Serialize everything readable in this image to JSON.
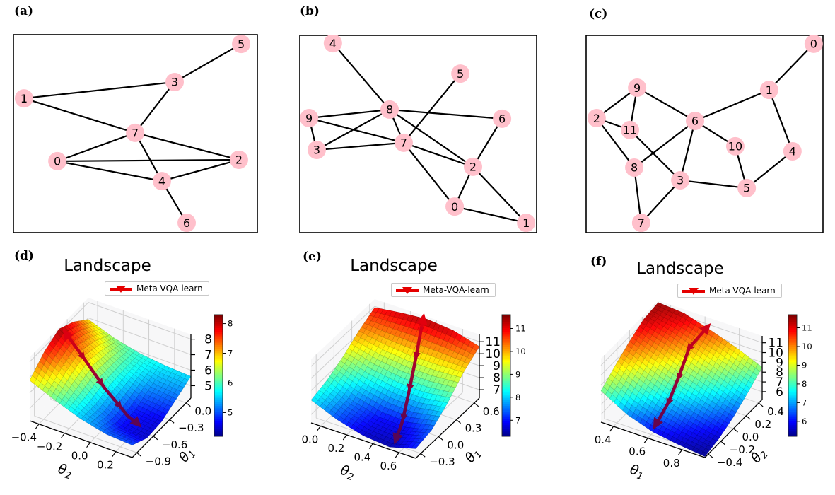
{
  "figure": {
    "panel_labels": {
      "a": "(a)",
      "b": "(b)",
      "c": "(c)",
      "d": "(d)",
      "e": "(e)",
      "f": "(f)"
    }
  },
  "styles": {
    "node_fill": "#FFC0CB",
    "edge_color": "#000000",
    "legend_color": "#e50000",
    "trajectory_high_color": "#e8000b",
    "trajectory_low_color": "#46065e",
    "pane_color": "#f2f2f4",
    "grid_color": "#cfcfcf"
  },
  "chart_data": [
    {
      "id": "a",
      "type": "network",
      "panel": "(a)",
      "nodes": [
        {
          "label": "0",
          "x": 0.182,
          "y": 0.638
        },
        {
          "label": "1",
          "x": 0.046,
          "y": 0.323
        },
        {
          "label": "2",
          "x": 0.922,
          "y": 0.631
        },
        {
          "label": "3",
          "x": 0.66,
          "y": 0.241
        },
        {
          "label": "4",
          "x": 0.608,
          "y": 0.738
        },
        {
          "label": "5",
          "x": 0.931,
          "y": 0.05
        },
        {
          "label": "6",
          "x": 0.709,
          "y": 0.947
        },
        {
          "label": "7",
          "x": 0.499,
          "y": 0.496
        }
      ],
      "edges": [
        [
          "0",
          "2"
        ],
        [
          "0",
          "4"
        ],
        [
          "0",
          "7"
        ],
        [
          "1",
          "3"
        ],
        [
          "1",
          "7"
        ],
        [
          "2",
          "4"
        ],
        [
          "2",
          "7"
        ],
        [
          "3",
          "5"
        ],
        [
          "3",
          "7"
        ],
        [
          "4",
          "6"
        ],
        [
          "4",
          "7"
        ]
      ]
    },
    {
      "id": "b",
      "type": "network",
      "panel": "(b)",
      "nodes": [
        {
          "label": "0",
          "x": 0.653,
          "y": 0.865
        },
        {
          "label": "1",
          "x": 0.953,
          "y": 0.947
        },
        {
          "label": "2",
          "x": 0.73,
          "y": 0.665
        },
        {
          "label": "3",
          "x": 0.074,
          "y": 0.58
        },
        {
          "label": "4",
          "x": 0.142,
          "y": 0.043
        },
        {
          "label": "5",
          "x": 0.677,
          "y": 0.196
        },
        {
          "label": "6",
          "x": 0.852,
          "y": 0.423
        },
        {
          "label": "7",
          "x": 0.439,
          "y": 0.544
        },
        {
          "label": "8",
          "x": 0.38,
          "y": 0.377
        },
        {
          "label": "9",
          "x": 0.042,
          "y": 0.42
        }
      ],
      "edges": [
        [
          "0",
          "1"
        ],
        [
          "0",
          "2"
        ],
        [
          "0",
          "7"
        ],
        [
          "1",
          "2"
        ],
        [
          "2",
          "6"
        ],
        [
          "2",
          "7"
        ],
        [
          "2",
          "8"
        ],
        [
          "3",
          "7"
        ],
        [
          "3",
          "8"
        ],
        [
          "3",
          "9"
        ],
        [
          "4",
          "8"
        ],
        [
          "5",
          "7"
        ],
        [
          "6",
          "8"
        ],
        [
          "7",
          "8"
        ],
        [
          "7",
          "9"
        ],
        [
          "8",
          "9"
        ]
      ]
    },
    {
      "id": "c",
      "type": "network",
      "panel": "(c)",
      "nodes": [
        {
          "label": "0",
          "x": 0.958,
          "y": 0.046
        },
        {
          "label": "1",
          "x": 0.771,
          "y": 0.278
        },
        {
          "label": "2",
          "x": 0.047,
          "y": 0.42
        },
        {
          "label": "3",
          "x": 0.398,
          "y": 0.733
        },
        {
          "label": "4",
          "x": 0.869,
          "y": 0.587
        },
        {
          "label": "5",
          "x": 0.677,
          "y": 0.772
        },
        {
          "label": "6",
          "x": 0.46,
          "y": 0.434
        },
        {
          "label": "7",
          "x": 0.234,
          "y": 0.947
        },
        {
          "label": "8",
          "x": 0.205,
          "y": 0.669
        },
        {
          "label": "9",
          "x": 0.217,
          "y": 0.267
        },
        {
          "label": "10",
          "x": 0.629,
          "y": 0.562
        },
        {
          "label": "11",
          "x": 0.187,
          "y": 0.48
        }
      ],
      "edges": [
        [
          "0",
          "1"
        ],
        [
          "1",
          "4"
        ],
        [
          "1",
          "6"
        ],
        [
          "2",
          "8"
        ],
        [
          "2",
          "9"
        ],
        [
          "2",
          "11"
        ],
        [
          "3",
          "5"
        ],
        [
          "3",
          "6"
        ],
        [
          "3",
          "7"
        ],
        [
          "3",
          "11"
        ],
        [
          "4",
          "5"
        ],
        [
          "5",
          "10"
        ],
        [
          "6",
          "8"
        ],
        [
          "6",
          "9"
        ],
        [
          "6",
          "10"
        ],
        [
          "7",
          "8"
        ],
        [
          "9",
          "11"
        ]
      ]
    },
    {
      "id": "d",
      "type": "surface3d",
      "panel": "(d)",
      "title": "Landscape",
      "legend": "Meta-VQA-learn",
      "bottom_left_axis": {
        "label": "θ2",
        "ticks": [
          "−0.4",
          "−0.2",
          "0.0",
          "0.2"
        ]
      },
      "bottom_right_axis": {
        "label": "θ1",
        "ticks": [
          "−0.9",
          "−0.6",
          "−0.3",
          "0.0"
        ]
      },
      "z_ticks": [
        5,
        6,
        7,
        8
      ],
      "colorbar": {
        "ticks": [
          5,
          6,
          7,
          8
        ],
        "vmin": 4.2,
        "vmax": 8.3,
        "colormap": "jet"
      },
      "z_grid": [
        [
          6.8,
          7.7,
          8.2,
          7.7,
          6.9
        ],
        [
          6.1,
          6.7,
          7.1,
          6.8,
          6.3
        ],
        [
          5.5,
          5.5,
          5.8,
          5.9,
          5.9
        ],
        [
          5.1,
          4.7,
          4.8,
          5.3,
          5.7
        ],
        [
          5.0,
          4.5,
          4.6,
          5.1,
          5.6
        ]
      ],
      "trajectory": {
        "label": "Meta-VQA-learn",
        "points_grid": [
          [
            0.3,
            2.0
          ],
          [
            1.0,
            1.85
          ],
          [
            1.8,
            1.7
          ],
          [
            2.6,
            1.55
          ],
          [
            3.4,
            1.35
          ]
        ]
      }
    },
    {
      "id": "e",
      "type": "surface3d",
      "panel": "(e)",
      "title": "Landscape",
      "legend": "Meta-VQA-learn",
      "bottom_left_axis": {
        "label": "θ2",
        "ticks": [
          "0.0",
          "0.2",
          "0.4",
          "0.6"
        ]
      },
      "bottom_right_axis": {
        "label": "θ1",
        "ticks": [
          "−0.3",
          "0.0",
          "0.3",
          "0.6"
        ]
      },
      "z_ticks": [
        7,
        8,
        9,
        10,
        11
      ],
      "colorbar": {
        "ticks": [
          7,
          8,
          9,
          10,
          11
        ],
        "vmin": 6.3,
        "vmax": 11.6,
        "colormap": "jet"
      },
      "z_grid": [
        [
          8.2,
          8.6,
          9.3,
          10.2,
          10.9
        ],
        [
          7.3,
          7.6,
          8.6,
          9.8,
          11.2
        ],
        [
          6.7,
          7.0,
          8.2,
          9.6,
          11.4
        ],
        [
          6.5,
          6.9,
          8.1,
          9.6,
          11.2
        ],
        [
          7.1,
          7.4,
          8.4,
          9.7,
          10.6
        ]
      ],
      "trajectory": {
        "label": "Meta-VQA-learn",
        "points_grid": [
          [
            1.9,
            3.9
          ],
          [
            2.2,
            3.0
          ],
          [
            2.5,
            2.1
          ],
          [
            2.8,
            1.2
          ],
          [
            3.05,
            0.35
          ]
        ]
      }
    },
    {
      "id": "f",
      "type": "surface3d",
      "panel": "(f)",
      "title": "Landscape",
      "legend": "Meta-VQA-learn",
      "bottom_left_axis": {
        "label": "θ1",
        "ticks": [
          "0.4",
          "0.6",
          "0.8"
        ]
      },
      "bottom_right_axis": {
        "label": "θ2",
        "ticks": [
          "−0.4",
          "−0.2",
          "0.0",
          "0.2",
          "0.4"
        ]
      },
      "z_ticks": [
        6,
        7,
        8,
        9,
        10,
        11
      ],
      "colorbar": {
        "ticks": [
          6,
          7,
          8,
          9,
          10,
          11
        ],
        "vmin": 5.2,
        "vmax": 11.7,
        "colormap": "jet"
      },
      "z_grid": [
        [
          8.4,
          9.5,
          10.5,
          11.3,
          11.5
        ],
        [
          6.9,
          8.2,
          9.4,
          10.5,
          11.3
        ],
        [
          6.0,
          7.1,
          8.3,
          9.5,
          10.5
        ],
        [
          5.6,
          6.3,
          7.4,
          8.5,
          9.6
        ],
        [
          5.3,
          5.7,
          6.4,
          7.4,
          8.5
        ]
      ],
      "trajectory": {
        "label": "Meta-VQA-learn",
        "points_grid": [
          [
            1.9,
            3.9
          ],
          [
            1.75,
            3.0
          ],
          [
            1.9,
            2.0
          ],
          [
            2.0,
            1.1
          ],
          [
            2.0,
            0.25
          ]
        ]
      }
    }
  ]
}
